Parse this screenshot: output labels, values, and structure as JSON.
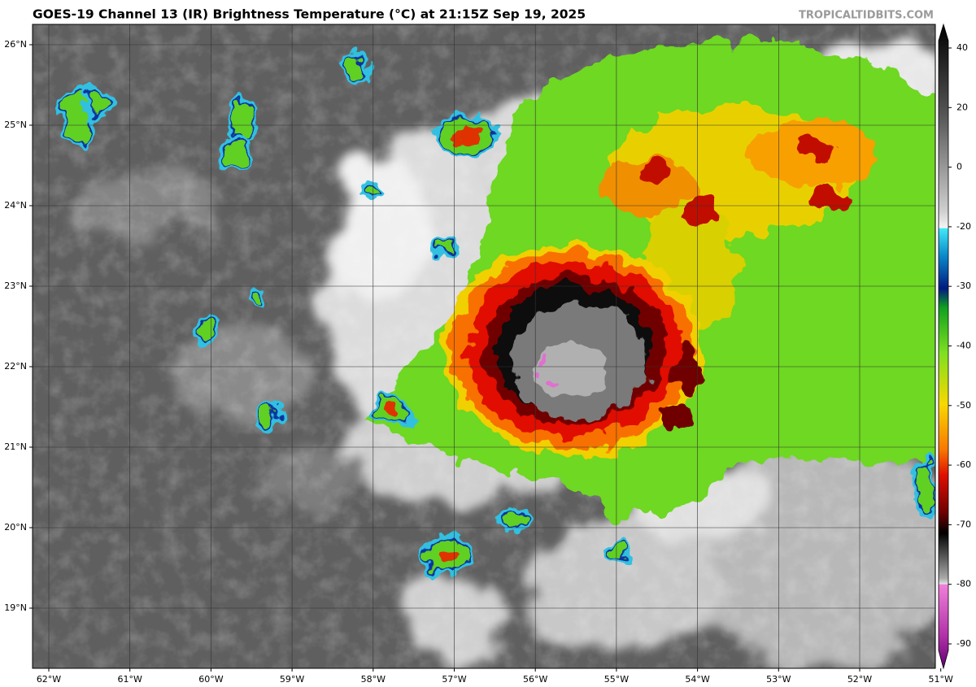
{
  "header": {
    "title": "GOES-19 Channel 13 (IR) Brightness Temperature (°C) at 21:15Z Sep 19, 2025",
    "watermark": "TROPICALTIDBITS.COM"
  },
  "map": {
    "lon_ticks": [
      {
        "value": -62,
        "label": "62°W"
      },
      {
        "value": -61,
        "label": "61°W"
      },
      {
        "value": -60,
        "label": "60°W"
      },
      {
        "value": -59,
        "label": "59°W"
      },
      {
        "value": -58,
        "label": "58°W"
      },
      {
        "value": -57,
        "label": "57°W"
      },
      {
        "value": -56,
        "label": "56°W"
      },
      {
        "value": -55,
        "label": "55°W"
      },
      {
        "value": -54,
        "label": "54°W"
      },
      {
        "value": -53,
        "label": "53°W"
      },
      {
        "value": -52,
        "label": "52°W"
      },
      {
        "value": -51,
        "label": "51°W"
      }
    ],
    "lat_ticks": [
      {
        "value": 26,
        "label": "26°N"
      },
      {
        "value": 25,
        "label": "25°N"
      },
      {
        "value": 24,
        "label": "24°N"
      },
      {
        "value": 23,
        "label": "23°N"
      },
      {
        "value": 22,
        "label": "22°N"
      },
      {
        "value": 21,
        "label": "21°N"
      },
      {
        "value": 20,
        "label": "20°N"
      },
      {
        "value": 19,
        "label": "19°N"
      }
    ]
  },
  "colorbar": {
    "ticks": [
      40,
      20,
      0,
      -20,
      -30,
      -40,
      -50,
      -60,
      -70,
      -80,
      -90
    ]
  }
}
